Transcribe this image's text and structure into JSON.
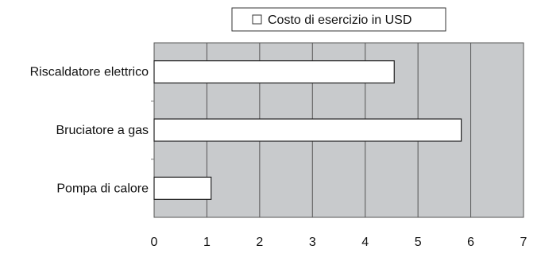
{
  "chart_data": {
    "type": "bar",
    "orientation": "horizontal",
    "categories": [
      "Riscaldatore elettrico",
      "Bruciatore a gas",
      "Pompa di calore"
    ],
    "series": [
      {
        "name": "Costo di esercizio in USD",
        "values": [
          4.55,
          5.82,
          1.08
        ]
      }
    ],
    "xlim": [
      0,
      7
    ],
    "xticks": [
      0,
      1,
      2,
      3,
      4,
      5,
      6,
      7
    ],
    "grid": true,
    "legend": "top",
    "colors": {
      "plot_background": "#c8cacc",
      "bar_fill": "#ffffff",
      "bar_stroke": "#222222",
      "grid": "#555555"
    }
  }
}
